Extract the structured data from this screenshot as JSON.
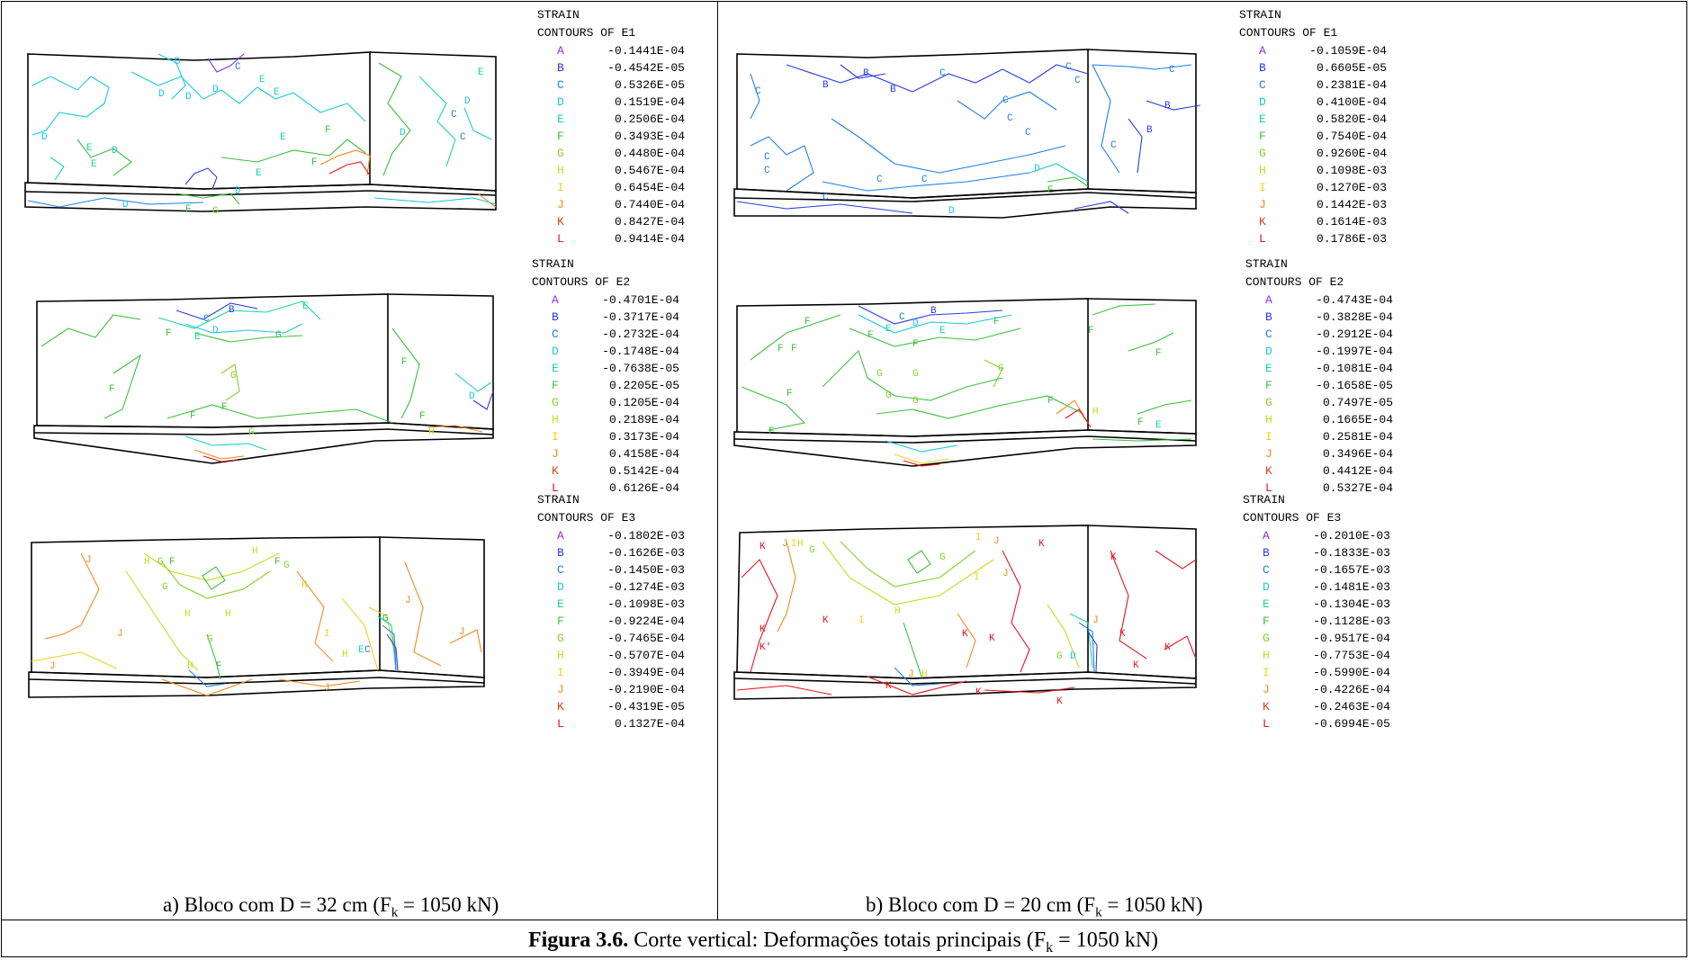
{
  "colors": {
    "A": "#8a2be2",
    "B": "#2a3be8",
    "C": "#1f7fe8",
    "D": "#19c9e0",
    "E": "#19d6a0",
    "F": "#3dbf3d",
    "G": "#80d428",
    "H": "#c4dc1e",
    "I": "#f0d21e",
    "J": "#f08a1e",
    "K": "#e63c1e",
    "L": "#e6141e"
  },
  "panels": [
    {
      "caption_main": "a) Bloco com D = 32 cm  (F",
      "caption_sub": "k",
      "caption_tail": " = 1050 kN)",
      "legends": [
        {
          "title1": "STRAIN",
          "title2": "CONTOURS OF E1",
          "entries": [
            {
              "letter": "A",
              "value": "-0.1441E-04"
            },
            {
              "letter": "B",
              "value": "-0.4542E-05"
            },
            {
              "letter": "C",
              "value": "0.5326E-05"
            },
            {
              "letter": "D",
              "value": "0.1519E-04"
            },
            {
              "letter": "E",
              "value": "0.2506E-04"
            },
            {
              "letter": "F",
              "value": "0.3493E-04"
            },
            {
              "letter": "G",
              "value": "0.4480E-04"
            },
            {
              "letter": "H",
              "value": "0.5467E-04"
            },
            {
              "letter": "I",
              "value": "0.6454E-04"
            },
            {
              "letter": "J",
              "value": "0.7440E-04"
            },
            {
              "letter": "K",
              "value": "0.8427E-04"
            },
            {
              "letter": "L",
              "value": "0.9414E-04"
            }
          ]
        },
        {
          "title1": "STRAIN",
          "title2": "CONTOURS OF E2",
          "entries": [
            {
              "letter": "A",
              "value": "-0.4701E-04"
            },
            {
              "letter": "B",
              "value": "-0.3717E-04"
            },
            {
              "letter": "C",
              "value": "-0.2732E-04"
            },
            {
              "letter": "D",
              "value": "-0.1748E-04"
            },
            {
              "letter": "E",
              "value": "-0.7638E-05"
            },
            {
              "letter": "F",
              "value": "0.2205E-05"
            },
            {
              "letter": "G",
              "value": "0.1205E-04"
            },
            {
              "letter": "H",
              "value": "0.2189E-04"
            },
            {
              "letter": "I",
              "value": "0.3173E-04"
            },
            {
              "letter": "J",
              "value": "0.4158E-04"
            },
            {
              "letter": "K",
              "value": "0.5142E-04"
            },
            {
              "letter": "L",
              "value": "0.6126E-04"
            }
          ]
        },
        {
          "title1": "STRAIN",
          "title2": "CONTOURS OF E3",
          "entries": [
            {
              "letter": "A",
              "value": "-0.1802E-03"
            },
            {
              "letter": "B",
              "value": "-0.1626E-03"
            },
            {
              "letter": "C",
              "value": "-0.1450E-03"
            },
            {
              "letter": "D",
              "value": "-0.1274E-03"
            },
            {
              "letter": "E",
              "value": "-0.1098E-03"
            },
            {
              "letter": "F",
              "value": "-0.9224E-04"
            },
            {
              "letter": "G",
              "value": "-0.7465E-04"
            },
            {
              "letter": "H",
              "value": "-0.5707E-04"
            },
            {
              "letter": "I",
              "value": "-0.3949E-04"
            },
            {
              "letter": "J",
              "value": "-0.2190E-04"
            },
            {
              "letter": "K",
              "value": "-0.4319E-05"
            },
            {
              "letter": "L",
              "value": "0.1327E-04"
            }
          ]
        }
      ]
    },
    {
      "caption_main": "b) Bloco com D = 20 cm  (F",
      "caption_sub": "k",
      "caption_tail": " = 1050 kN)",
      "legends": [
        {
          "title1": "STRAIN",
          "title2": "CONTOURS OF E1",
          "entries": [
            {
              "letter": "A",
              "value": "-0.1059E-04"
            },
            {
              "letter": "B",
              "value": "0.6605E-05"
            },
            {
              "letter": "C",
              "value": "0.2381E-04"
            },
            {
              "letter": "D",
              "value": "0.4100E-04"
            },
            {
              "letter": "E",
              "value": "0.5820E-04"
            },
            {
              "letter": "F",
              "value": "0.7540E-04"
            },
            {
              "letter": "G",
              "value": "0.9260E-04"
            },
            {
              "letter": "H",
              "value": "0.1098E-03"
            },
            {
              "letter": "I",
              "value": "0.1270E-03"
            },
            {
              "letter": "J",
              "value": "0.1442E-03"
            },
            {
              "letter": "K",
              "value": "0.1614E-03"
            },
            {
              "letter": "L",
              "value": "0.1786E-03"
            }
          ]
        },
        {
          "title1": "STRAIN",
          "title2": "CONTOURS OF E2",
          "entries": [
            {
              "letter": "A",
              "value": "-0.4743E-04"
            },
            {
              "letter": "B",
              "value": "-0.3828E-04"
            },
            {
              "letter": "C",
              "value": "-0.2912E-04"
            },
            {
              "letter": "D",
              "value": "-0.1997E-04"
            },
            {
              "letter": "E",
              "value": "-0.1081E-04"
            },
            {
              "letter": "F",
              "value": "-0.1658E-05"
            },
            {
              "letter": "G",
              "value": "0.7497E-05"
            },
            {
              "letter": "H",
              "value": "0.1665E-04"
            },
            {
              "letter": "I",
              "value": "0.2581E-04"
            },
            {
              "letter": "J",
              "value": "0.3496E-04"
            },
            {
              "letter": "K",
              "value": "0.4412E-04"
            },
            {
              "letter": "L",
              "value": "0.5327E-04"
            }
          ]
        },
        {
          "title1": "STRAIN",
          "title2": "CONTOURS OF E3",
          "entries": [
            {
              "letter": "A",
              "value": "-0.2010E-03"
            },
            {
              "letter": "B",
              "value": "-0.1833E-03"
            },
            {
              "letter": "C",
              "value": "-0.1657E-03"
            },
            {
              "letter": "D",
              "value": "-0.1481E-03"
            },
            {
              "letter": "E",
              "value": "-0.1304E-03"
            },
            {
              "letter": "F",
              "value": "-0.1128E-03"
            },
            {
              "letter": "G",
              "value": "-0.9517E-04"
            },
            {
              "letter": "H",
              "value": "-0.7753E-04"
            },
            {
              "letter": "I",
              "value": "-0.5990E-04"
            },
            {
              "letter": "J",
              "value": "-0.4226E-04"
            },
            {
              "letter": "K",
              "value": "-0.2463E-04"
            },
            {
              "letter": "L",
              "value": "-0.6994E-05"
            }
          ]
        }
      ]
    }
  ],
  "figure_caption": {
    "label": "Figura 3.6.",
    "text": " Corte vertical: Deformações totais principais (F",
    "sub": "k",
    "tail": " = 1050 kN)"
  }
}
